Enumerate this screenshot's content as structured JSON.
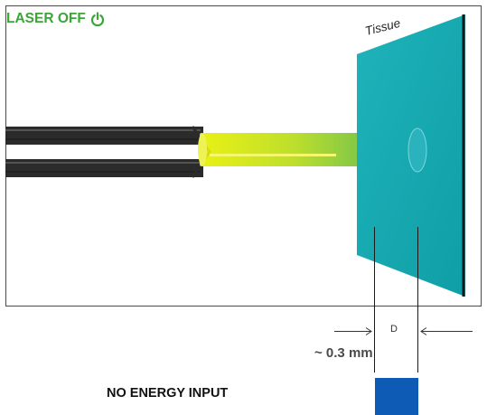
{
  "status": {
    "label": "LASER OFF",
    "color": "#3aa636",
    "icon": "power-icon"
  },
  "tissue": {
    "label": "Tissue",
    "color": "#13a8b0"
  },
  "distance": {
    "label": "~ 0.3 mm",
    "gap_label": "D"
  },
  "energy": {
    "label": "NO ENERGY INPUT",
    "indicator_color": "#0d5bb5"
  }
}
